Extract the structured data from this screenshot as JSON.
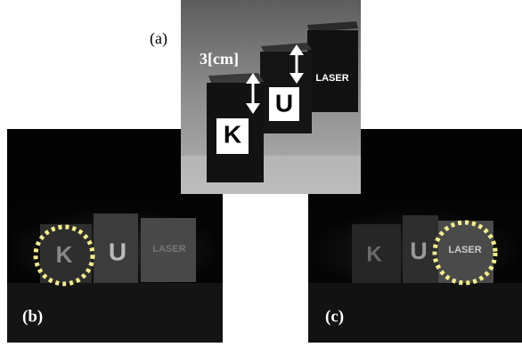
{
  "figure": {
    "panels": [
      {
        "label": "(a)",
        "annotation": "3[cm]",
        "letters": [
          "K",
          "U",
          "LASER"
        ]
      },
      {
        "label": "(b)",
        "letters": [
          "K",
          "U",
          "LASER"
        ]
      },
      {
        "label": "(c)",
        "letters": [
          "K",
          "U",
          "LASER"
        ]
      }
    ]
  }
}
